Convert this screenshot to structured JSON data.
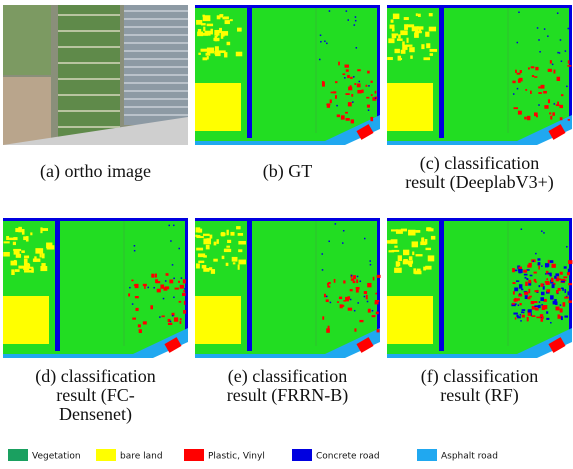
{
  "panels": [
    {
      "caption": [
        "(a) ortho image"
      ]
    },
    {
      "caption": [
        "(b) GT"
      ]
    },
    {
      "caption": [
        "(c) classification",
        "result (DeeplabV3+)"
      ]
    },
    {
      "caption": [
        "(d) classification",
        "result (FC-",
        "Densenet)"
      ]
    },
    {
      "caption": [
        "(e) classification",
        "result (FRRN-B)"
      ]
    },
    {
      "caption": [
        "(f) classification",
        "result (RF)"
      ]
    }
  ],
  "legend": [
    {
      "label": "Vegetation",
      "color": "#1aa060"
    },
    {
      "label": "bare land",
      "color": "#ffff00"
    },
    {
      "label": "Plastic, Vinyl",
      "color": "#ff0000"
    },
    {
      "label": "Concrete road",
      "color": "#0000e0"
    },
    {
      "label": "Asphalt road",
      "color": "#20a8f0"
    }
  ]
}
